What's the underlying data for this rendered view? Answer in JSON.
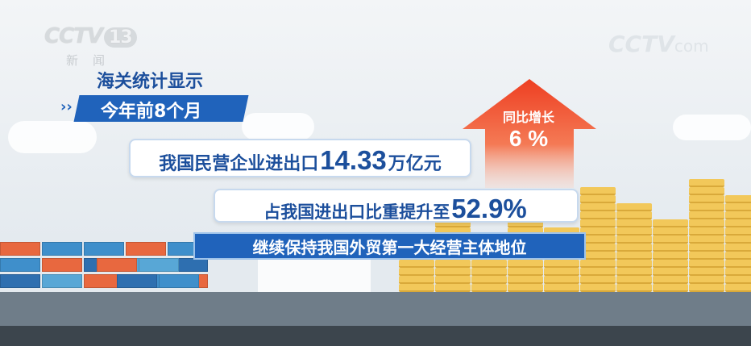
{
  "logos": {
    "channel": "CCTV",
    "channel_number": "13",
    "channel_sub": "新闻",
    "watermark": "CCTV",
    "watermark_sub": "com"
  },
  "headline": "海关统计显示",
  "period_banner": "今年前8个月",
  "fact1": {
    "prefix": "我国民营企业进出口",
    "value": "14.33",
    "suffix": "万亿元"
  },
  "fact2": {
    "prefix": "占我国进出口比重提升至",
    "value": "52.9%"
  },
  "fact3": "继续保持我国外贸第一大经营主体地位",
  "growth": {
    "label": "同比增长",
    "value": "6 %"
  },
  "colors": {
    "brand_blue": "#2063bb",
    "text_blue": "#1c4f9c",
    "arrow_red": "#ef4a2a",
    "coin_gold": "#f2c85a"
  }
}
